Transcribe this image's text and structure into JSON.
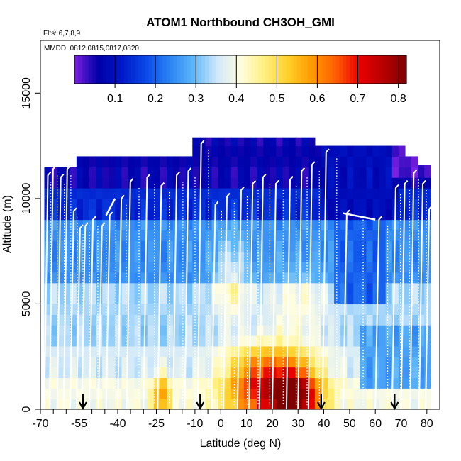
{
  "chart_data": {
    "type": "heatmap",
    "title": "ATOM1 Northbound CH3OH_GMI",
    "flights_label": "Flts: 6,7,8,9",
    "dates_label": "MMDD: 0812,0815,0817,0820",
    "xlabel": "Latitude (deg N)",
    "ylabel": "Altitude (m)",
    "xlim": [
      -70,
      85
    ],
    "ylim": [
      0,
      17500
    ],
    "x_ticks": [
      -70,
      -55,
      -40,
      -25,
      -10,
      0,
      10,
      20,
      30,
      40,
      50,
      60,
      70,
      80
    ],
    "x_tick_labels": [
      "-70",
      "-55",
      "-40",
      "-25",
      "-10",
      "0",
      "10",
      "20",
      "30",
      "40",
      "50",
      "60",
      "70",
      "80"
    ],
    "x_minor_ticks": [
      -65,
      -60,
      -50,
      -45,
      -35,
      -30,
      -20,
      -15,
      -5
    ],
    "y_ticks": [
      0,
      5000,
      10000,
      15000
    ],
    "y_tick_labels": [
      "0",
      "5000",
      "10000",
      "15000"
    ],
    "colorbar": {
      "range": [
        0,
        0.82
      ],
      "ticks": [
        0.1,
        0.2,
        0.3,
        0.4,
        0.5,
        0.6,
        0.7,
        0.8
      ],
      "tick_labels": [
        "0.1",
        "0.2",
        "0.3",
        "0.4",
        "0.5",
        "0.6",
        "0.7",
        "0.8"
      ],
      "colors": [
        "#7b1fe0",
        "#0000a8",
        "#0018c8",
        "#0a48e8",
        "#2a82f4",
        "#5cb6f8",
        "#cfe8fb",
        "#fffde0",
        "#fff080",
        "#ffd02a",
        "#ff9c00",
        "#ff6000",
        "#ea0000",
        "#b80000",
        "#800000"
      ]
    },
    "profiles": [
      {
        "lat": -68.5,
        "top": 11100
      },
      {
        "lat": -66.5,
        "top": 11400
      },
      {
        "lat": -63.5,
        "top": 11000
      },
      {
        "lat": -61.0,
        "top": 11400
      },
      {
        "lat": -58.5,
        "top": 9400
      },
      {
        "lat": -56.0,
        "top": 8600
      },
      {
        "lat": -54.0,
        "top": 8700
      },
      {
        "lat": -51.0,
        "top": 9000
      },
      {
        "lat": -47.5,
        "top": 8700
      },
      {
        "lat": -44.5,
        "top": 9200
      },
      {
        "lat": -40.0,
        "top": 10000
      },
      {
        "lat": -36.5,
        "top": 10800
      },
      {
        "lat": -30.0,
        "top": 11000
      },
      {
        "lat": -24.5,
        "top": 10600
      },
      {
        "lat": -18.5,
        "top": 11100
      },
      {
        "lat": -14.0,
        "top": 11300
      },
      {
        "lat": -9.0,
        "top": 12600
      },
      {
        "lat": -3.5,
        "top": 9700
      },
      {
        "lat": 1.0,
        "top": 10100
      },
      {
        "lat": 6.5,
        "top": 10400
      },
      {
        "lat": 11.0,
        "top": 10700
      },
      {
        "lat": 15.0,
        "top": 11000
      },
      {
        "lat": 20.0,
        "top": 10700
      },
      {
        "lat": 25.5,
        "top": 10900
      },
      {
        "lat": 30.0,
        "top": 11300
      },
      {
        "lat": 34.0,
        "top": 11600
      },
      {
        "lat": 39.5,
        "top": 12200
      },
      {
        "lat": 47.5,
        "top": 9300
      },
      {
        "lat": 60.0,
        "top": 9000
      },
      {
        "lat": 66.5,
        "top": 10500
      },
      {
        "lat": 70.0,
        "top": 10700
      },
      {
        "lat": 73.5,
        "top": 11200
      },
      {
        "lat": 77.0,
        "top": 10700
      },
      {
        "lat": 79.5,
        "top": 9500
      }
    ],
    "arrow_lats": [
      -53.5,
      -8.0,
      39.0,
      67.5
    ]
  }
}
